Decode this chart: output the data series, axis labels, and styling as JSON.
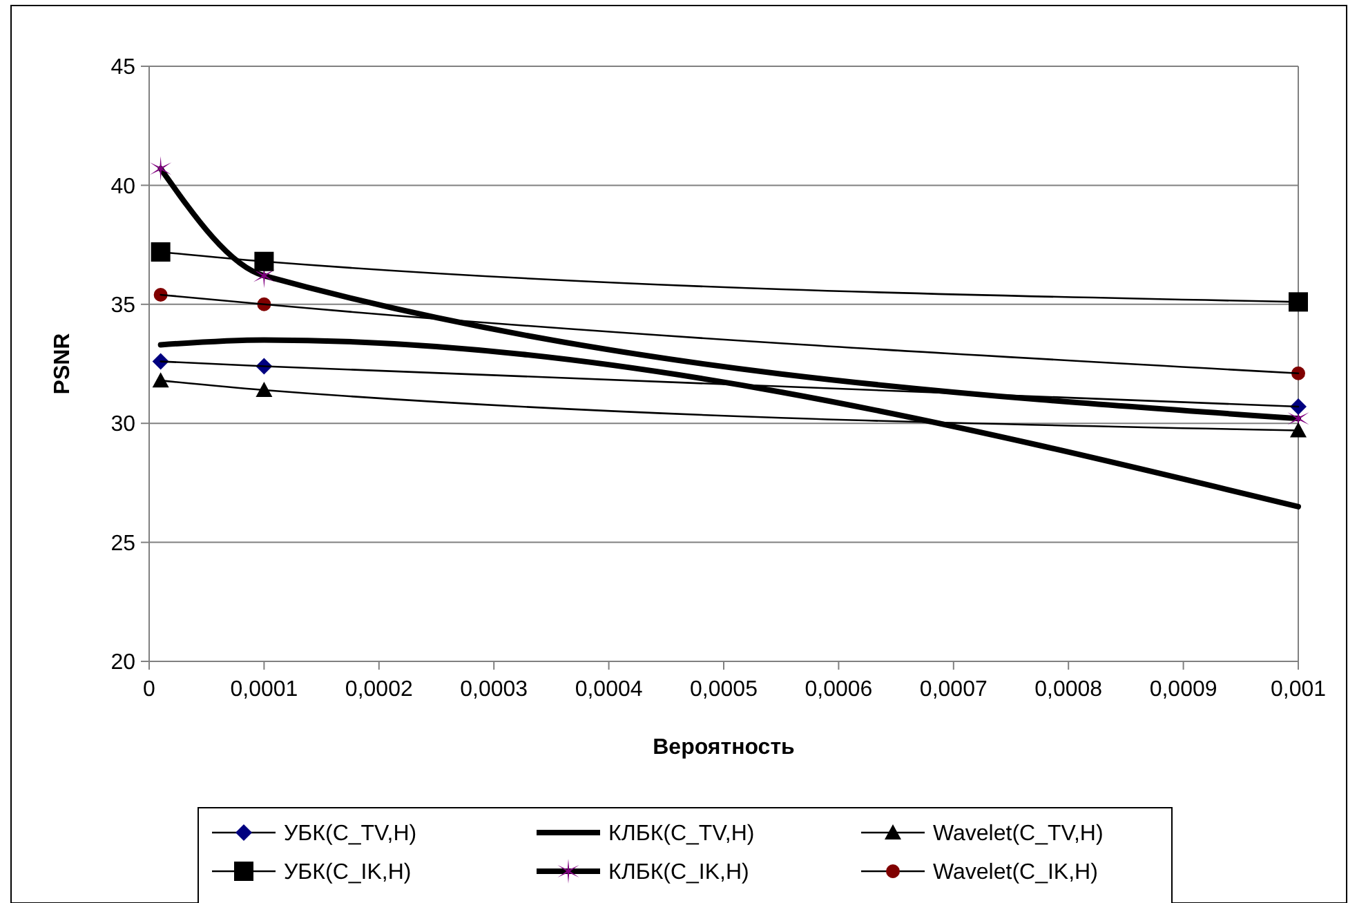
{
  "chart_data": {
    "type": "line",
    "xlabel": "Вероятность",
    "ylabel": "PSNR",
    "xlim": [
      0,
      0.001
    ],
    "ylim": [
      20,
      45
    ],
    "xticks": [
      0,
      {
        "value": 0.0001,
        "label": "0,0001"
      },
      {
        "value": 0.0002,
        "label": "0,0002"
      },
      {
        "value": 0.0003,
        "label": "0,0003"
      },
      {
        "value": 0.0004,
        "label": "0,0004"
      },
      {
        "value": 0.0005,
        "label": "0,0005"
      },
      {
        "value": 0.0006,
        "label": "0,0006"
      },
      {
        "value": 0.0007,
        "label": "0,0007"
      },
      {
        "value": 0.0008,
        "label": "0,0008"
      },
      {
        "value": 0.0009,
        "label": "0,0009"
      },
      {
        "value": 0.001,
        "label": "0,001"
      }
    ],
    "yticks": [
      20,
      25,
      30,
      35,
      40,
      45
    ],
    "x": [
      1e-05,
      0.0001,
      0.001
    ],
    "grid": "y",
    "legend": "bottom",
    "series": [
      {
        "name": "УБК(C_TV,H)",
        "color": "#000080",
        "marker": "diamond",
        "values": [
          32.6,
          32.4,
          30.7
        ]
      },
      {
        "name": "КЛБК(C_TV,H)",
        "color": "#000000",
        "marker": "none",
        "values": [
          33.3,
          33.5,
          26.5
        ]
      },
      {
        "name": "Wavelet(C_TV,H)",
        "color": "#000000",
        "marker": "triangle",
        "values": [
          31.8,
          31.4,
          29.7
        ]
      },
      {
        "name": "УБК(C_IK,H)",
        "color": "#000000",
        "marker": "square",
        "values": [
          37.2,
          36.8,
          35.1
        ]
      },
      {
        "name": "КЛБК(C_IK,H)",
        "color": "#800080",
        "marker": "cross",
        "values": [
          40.7,
          36.2,
          30.2
        ]
      },
      {
        "name": "Wavelet(C_IK,H)",
        "color": "#800000",
        "marker": "circle",
        "values": [
          35.4,
          35.0,
          32.1
        ]
      }
    ]
  }
}
